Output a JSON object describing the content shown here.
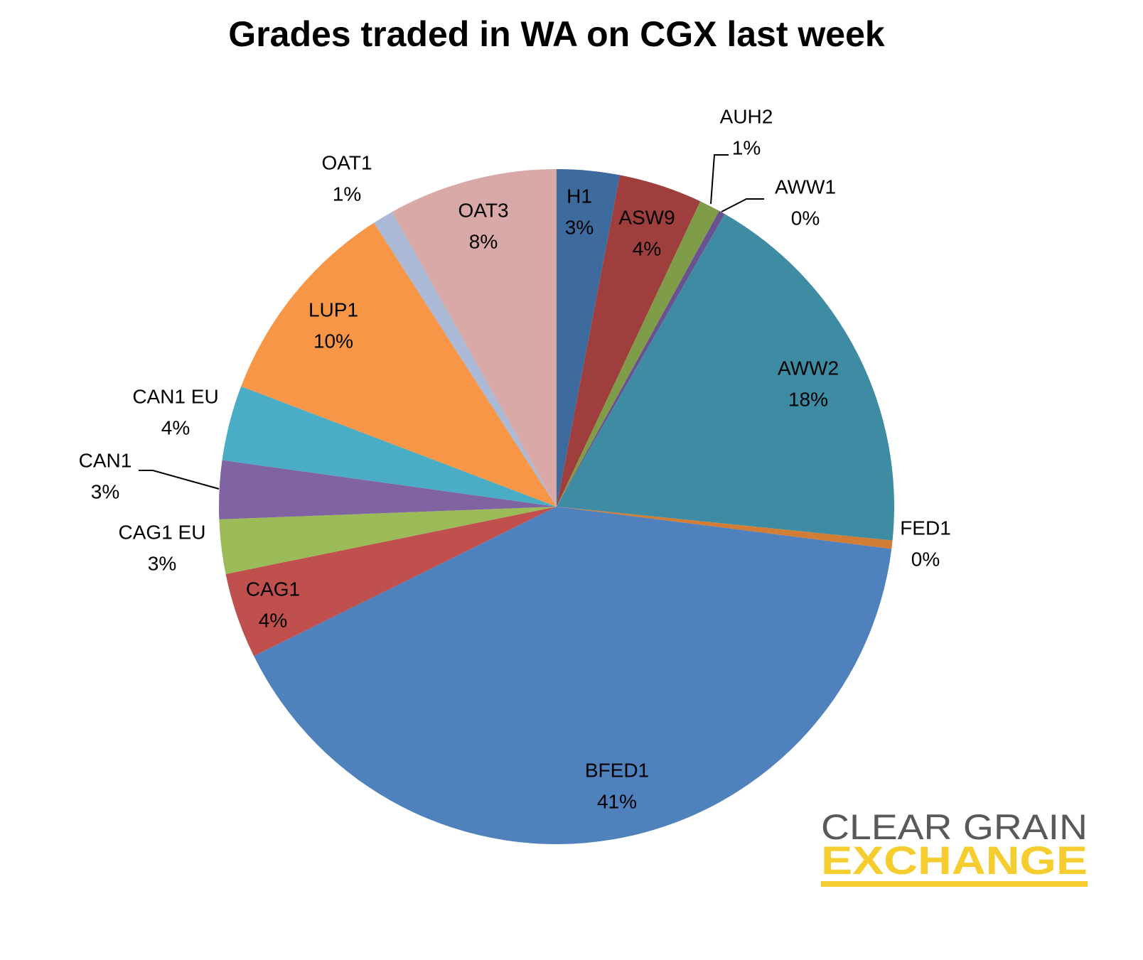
{
  "chart_data": {
    "type": "pie",
    "title": "Grades traded in WA on CGX last week",
    "categories": [
      "H1",
      "ASW9",
      "AUH2",
      "AWW1",
      "AWW2",
      "FED1",
      "BFED1",
      "CAG1",
      "CAG1 EU",
      "CAN1",
      "CAN1 EU",
      "LUP1",
      "OAT1",
      "OAT3"
    ],
    "values": [
      3.0,
      4.0,
      1.0,
      0.3,
      18.3,
      0.4,
      40.7,
      4.1,
      2.6,
      2.8,
      3.6,
      10.1,
      1.0,
      8.1
    ],
    "value_labels": [
      "3%",
      "4%",
      "1%",
      "0%",
      "18%",
      "0%",
      "41%",
      "4%",
      "3%",
      "3%",
      "4%",
      "10%",
      "1%",
      "8%"
    ],
    "colors": [
      "#3e6b9e",
      "#9e3f3d",
      "#7f9c48",
      "#6a5190",
      "#3d8ca3",
      "#d17d35",
      "#4f81bd",
      "#c0504d",
      "#9bbb59",
      "#8064a2",
      "#4bacc6",
      "#f79646",
      "#aabad7",
      "#d9a9a8"
    ]
  },
  "logo": {
    "line1": "CLEAR GRAIN",
    "line2": "EXCHANGE"
  }
}
